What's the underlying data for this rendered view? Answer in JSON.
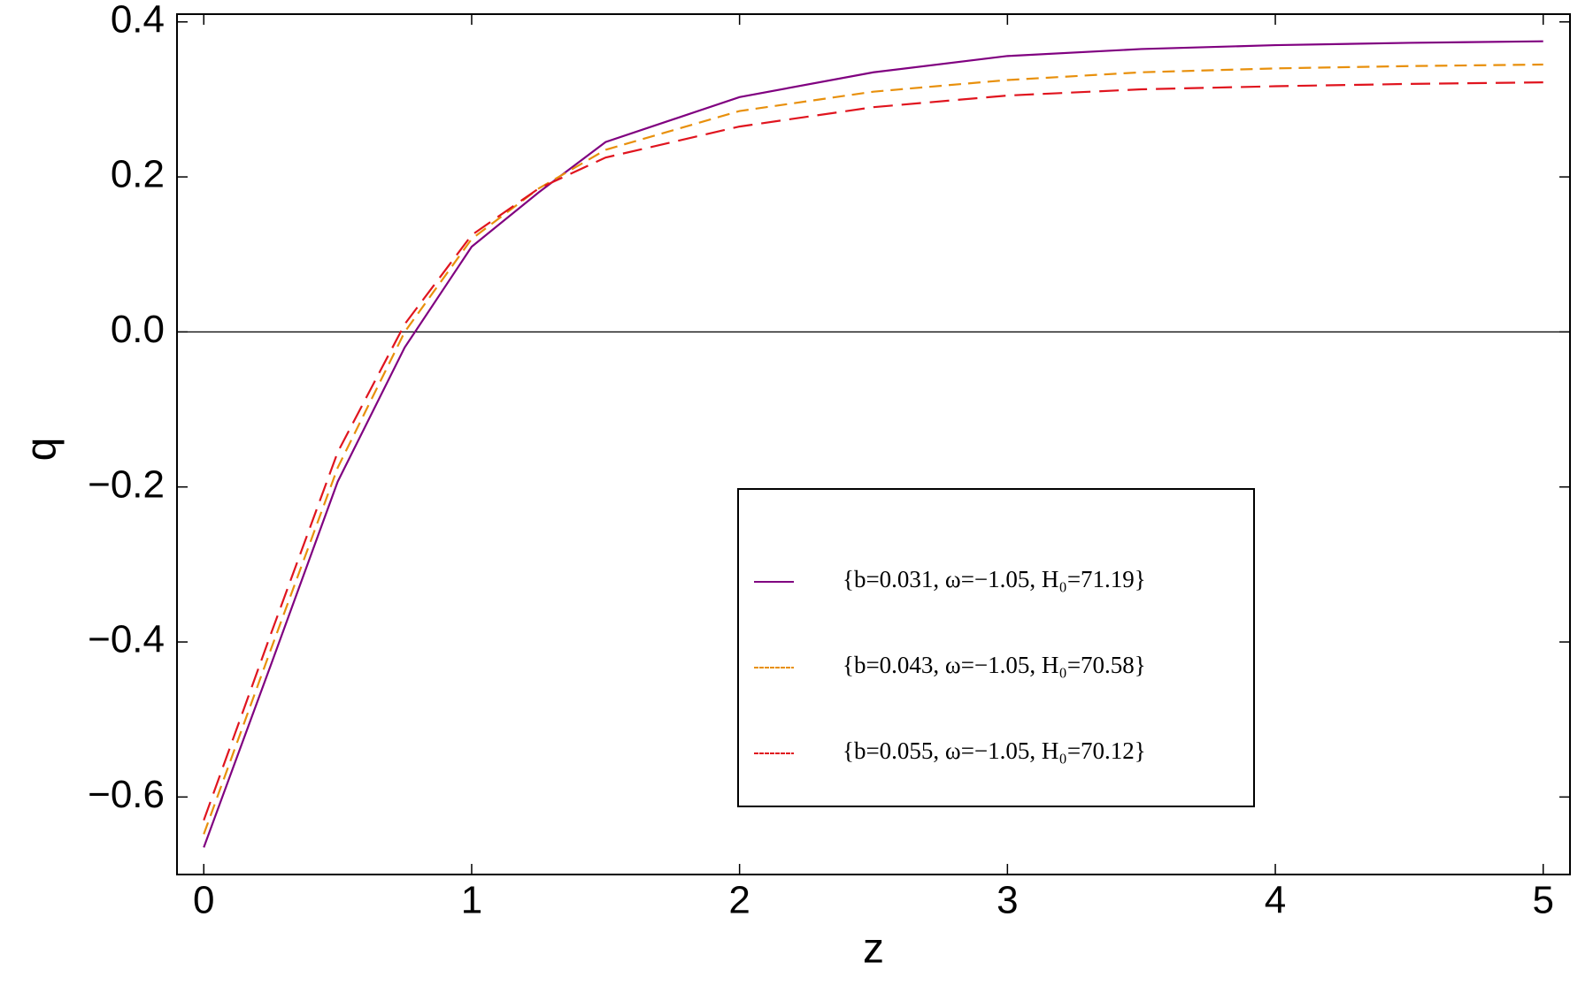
{
  "chart_data": {
    "type": "line",
    "x_label": "z",
    "y_label": "q",
    "x": [
      0,
      0.25,
      0.5,
      0.75,
      1,
      1.25,
      1.5,
      2,
      2.5,
      3,
      3.5,
      4,
      4.5,
      5
    ],
    "series": [
      {
        "name": "{b=0.031, ω=−1.05, H₀=71.19}",
        "color": "#800080",
        "dash": "none",
        "values": [
          -0.665,
          -0.43,
          -0.193,
          -0.02,
          0.11,
          0.18,
          0.245,
          0.303,
          0.335,
          0.356,
          0.365,
          0.37,
          0.373,
          0.375
        ]
      },
      {
        "name": "{b=0.043, ω=−1.05, H₀=70.58}",
        "color": "#e8900c",
        "dash": "14 8",
        "values": [
          -0.648,
          -0.41,
          -0.175,
          0.0,
          0.12,
          0.185,
          0.235,
          0.285,
          0.31,
          0.325,
          0.335,
          0.34,
          0.343,
          0.345
        ]
      },
      {
        "name": "{b=0.055, ω=−1.05, H₀=70.12}",
        "color": "#e0141e",
        "dash": "22 10",
        "values": [
          -0.63,
          -0.39,
          -0.155,
          0.01,
          0.125,
          0.185,
          0.225,
          0.265,
          0.29,
          0.305,
          0.313,
          0.317,
          0.32,
          0.322
        ]
      }
    ],
    "xlim": [
      -0.1,
      5.1
    ],
    "ylim": [
      -0.7,
      0.41
    ],
    "xticks": [
      0,
      1,
      2,
      3,
      4,
      5
    ],
    "yticks": [
      {
        "value": -0.6,
        "label": "−0.6"
      },
      {
        "value": -0.4,
        "label": "−0.4"
      },
      {
        "value": -0.2,
        "label": "−0.2"
      },
      {
        "value": 0,
        "label": "0.0"
      },
      {
        "value": 0.2,
        "label": "0.2"
      },
      {
        "value": 0.4,
        "label": "0.4"
      }
    ],
    "grid": false
  }
}
